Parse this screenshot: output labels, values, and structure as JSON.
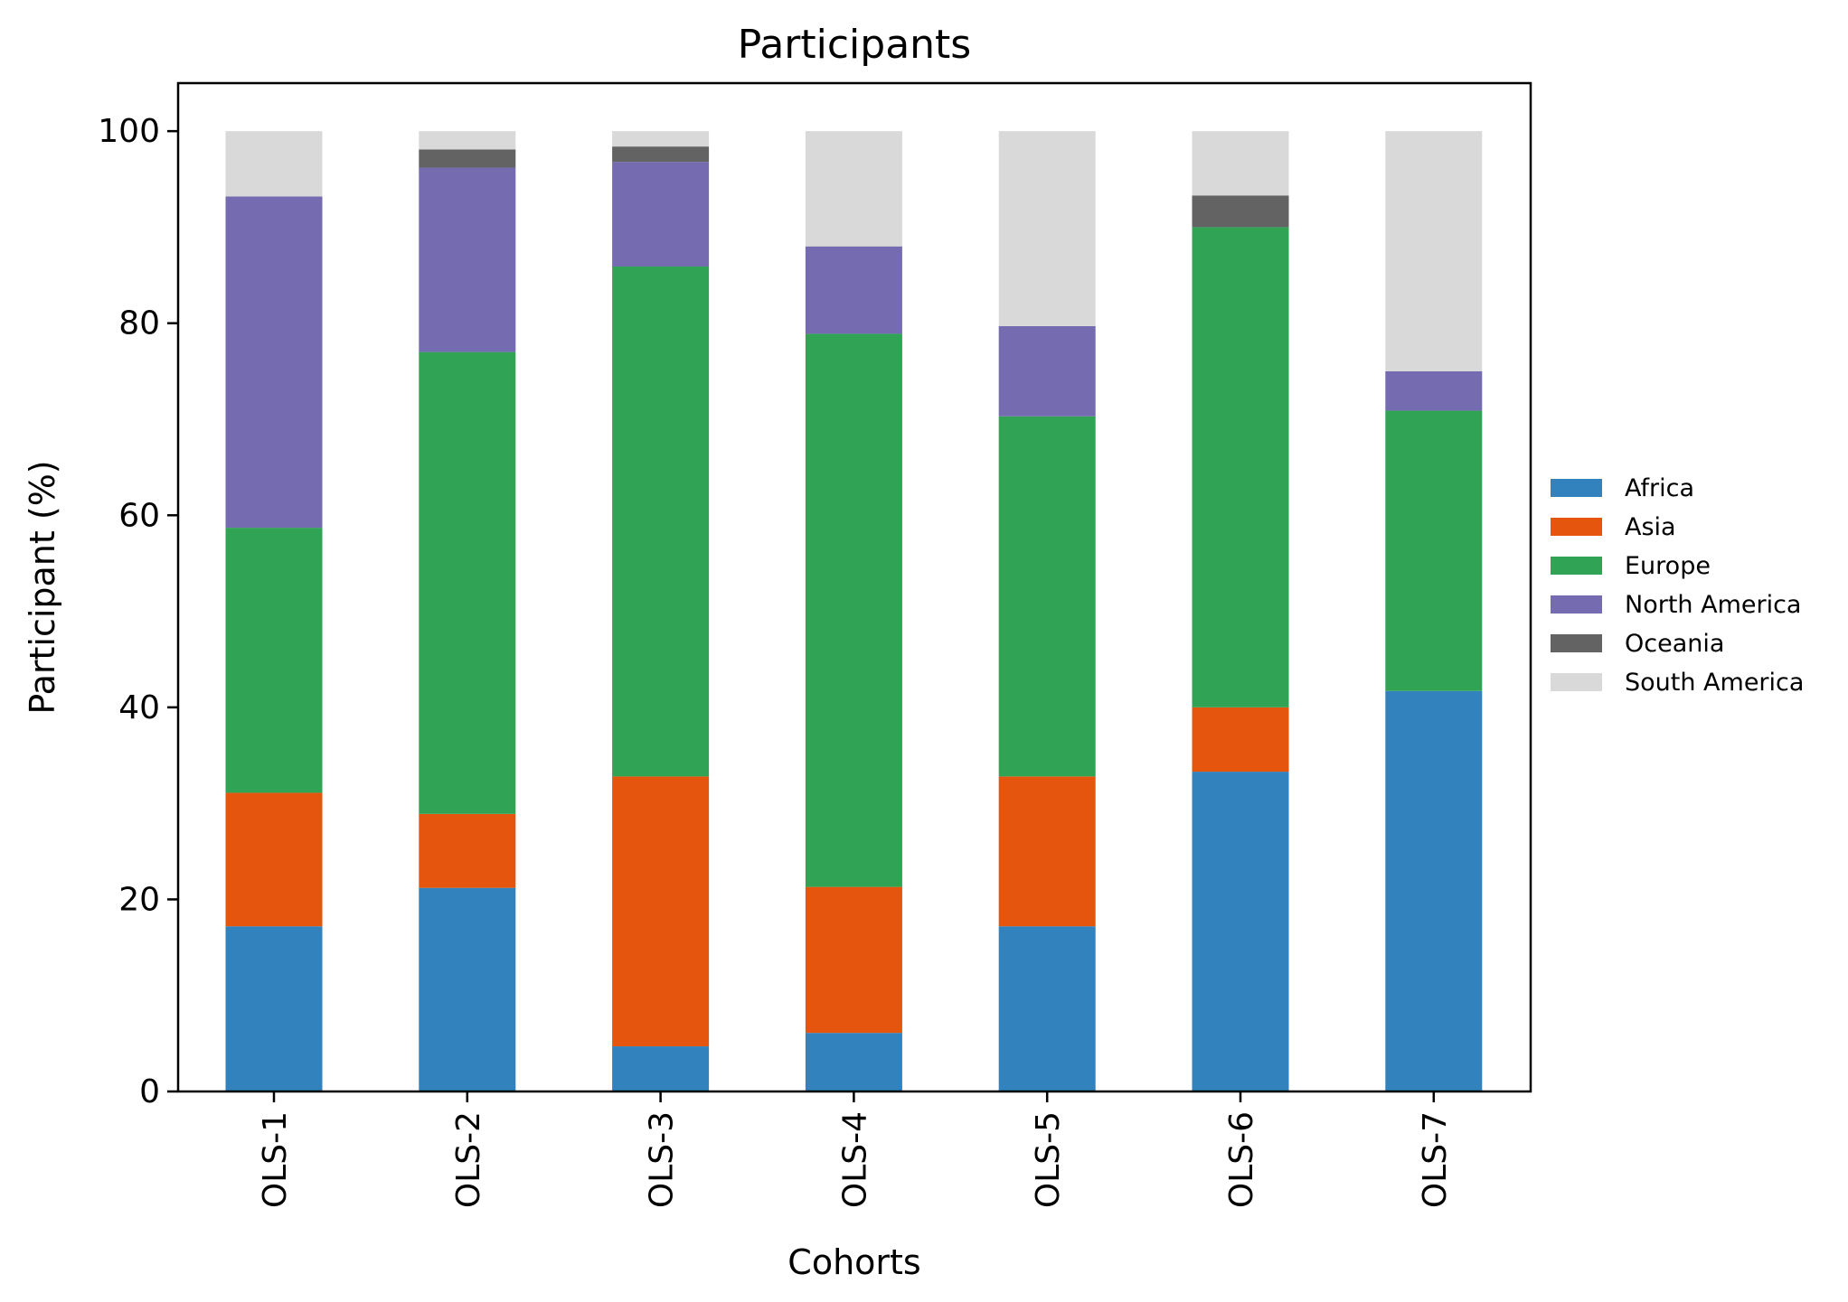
{
  "chart_data": {
    "type": "bar",
    "stacked": true,
    "title": "Participants",
    "xlabel": "Cohorts",
    "ylabel": "Participant (%)",
    "ylim": [
      0,
      105
    ],
    "yticks": [
      0,
      20,
      40,
      60,
      80,
      100
    ],
    "categories": [
      "OLS-1",
      "OLS-2",
      "OLS-3",
      "OLS-4",
      "OLS-5",
      "OLS-6",
      "OLS-7"
    ],
    "series": [
      {
        "name": "Africa",
        "color": "#3182bd",
        "values": [
          17.2,
          21.2,
          4.7,
          6.1,
          17.2,
          33.3,
          41.7
        ]
      },
      {
        "name": "Asia",
        "color": "#e6550d",
        "values": [
          13.9,
          7.7,
          28.1,
          15.2,
          15.6,
          6.7,
          0.0
        ]
      },
      {
        "name": "Europe",
        "color": "#31a354",
        "values": [
          27.6,
          48.1,
          53.1,
          57.6,
          37.5,
          50.0,
          29.2
        ]
      },
      {
        "name": "North America",
        "color": "#756bb1",
        "values": [
          34.5,
          19.2,
          10.9,
          9.1,
          9.4,
          0.0,
          4.1
        ]
      },
      {
        "name": "Oceania",
        "color": "#636363",
        "values": [
          0.0,
          1.9,
          1.6,
          0.0,
          0.0,
          3.3,
          0.0
        ]
      },
      {
        "name": "South America",
        "color": "#d9d9d9",
        "values": [
          6.8,
          1.9,
          1.6,
          12.0,
          20.3,
          6.7,
          25.0
        ]
      }
    ],
    "legend": "right"
  }
}
